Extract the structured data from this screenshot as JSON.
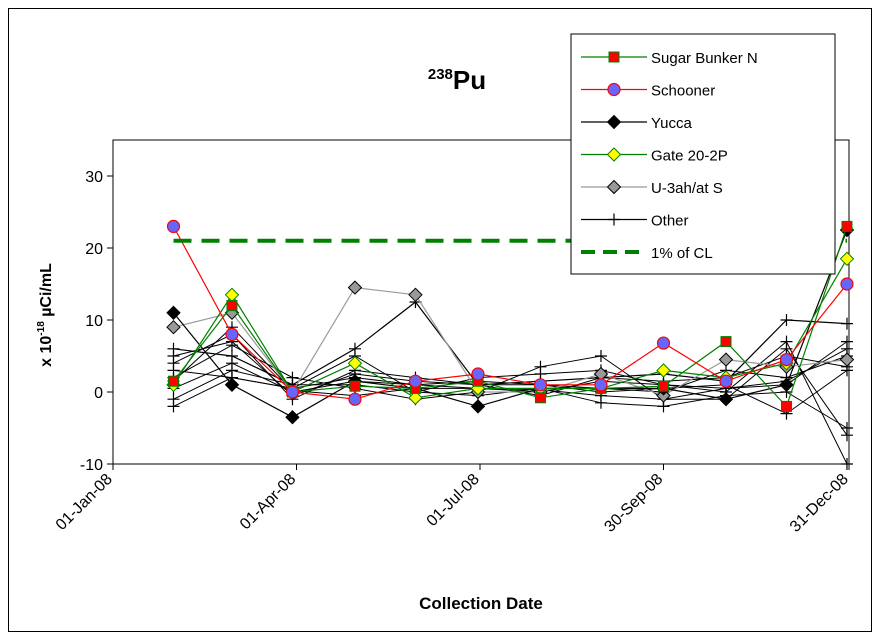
{
  "chart_data": {
    "type": "line",
    "title": {
      "sup": "238",
      "main": "Pu"
    },
    "xlabel": "Collection Date",
    "ylabel": {
      "prefix": "x 10",
      "exp": "-18",
      "unit": " µCi/mL"
    },
    "ylim": [
      -10,
      35
    ],
    "yticks": [
      -10,
      0,
      10,
      20,
      30
    ],
    "xticks": [
      {
        "day": 0,
        "label": "01-Jan-08"
      },
      {
        "day": 91,
        "label": "01-Apr-08"
      },
      {
        "day": 182,
        "label": "01-Jul-08"
      },
      {
        "day": 273,
        "label": "30-Sep-08"
      },
      {
        "day": 365,
        "label": "31-Dec-08"
      }
    ],
    "xlim": [
      0,
      365
    ],
    "grid": false,
    "legend_position": "top-right",
    "series": [
      {
        "name": "Sugar Bunker N",
        "color": "#008000",
        "marker": "square",
        "markerFill": "#ff0000",
        "markerStroke": "#008000",
        "points": [
          [
            30,
            1.5
          ],
          [
            59,
            12
          ],
          [
            89,
            0
          ],
          [
            120,
            0.8
          ],
          [
            150,
            0.5
          ],
          [
            181,
            1.5
          ],
          [
            212,
            -0.8
          ],
          [
            242,
            0.5
          ],
          [
            273,
            0.8
          ],
          [
            304,
            7
          ],
          [
            334,
            -2
          ],
          [
            364,
            23
          ]
        ]
      },
      {
        "name": "Schooner",
        "color": "#ff0000",
        "marker": "circle",
        "markerFill": "#6666ff",
        "markerStroke": "#ff0000",
        "points": [
          [
            30,
            23
          ],
          [
            59,
            8
          ],
          [
            89,
            0
          ],
          [
            120,
            -1
          ],
          [
            150,
            1.5
          ],
          [
            181,
            2.5
          ],
          [
            212,
            1
          ],
          [
            242,
            1
          ],
          [
            273,
            6.8
          ],
          [
            304,
            1.5
          ],
          [
            334,
            4.5
          ],
          [
            364,
            15
          ]
        ]
      },
      {
        "name": "Yucca",
        "color": "#000000",
        "marker": "diamond",
        "markerFill": "#000000",
        "markerStroke": "#000000",
        "points": [
          [
            30,
            11
          ],
          [
            59,
            1
          ],
          [
            89,
            -3.5
          ],
          [
            120,
            1.5
          ],
          [
            150,
            0.5
          ],
          [
            181,
            -2
          ],
          [
            212,
            0.5
          ],
          [
            242,
            0.5
          ],
          [
            273,
            0.5
          ],
          [
            304,
            -1
          ],
          [
            334,
            1
          ],
          [
            364,
            22.5
          ]
        ]
      },
      {
        "name": "Gate 20-2P",
        "color": "#008000",
        "marker": "diamond",
        "markerFill": "#ffff00",
        "markerStroke": "#008000",
        "points": [
          [
            30,
            1
          ],
          [
            59,
            13.5
          ],
          [
            89,
            0
          ],
          [
            120,
            4
          ],
          [
            150,
            -0.8
          ],
          [
            181,
            0.5
          ],
          [
            212,
            0.5
          ],
          [
            242,
            0.5
          ],
          [
            273,
            3
          ],
          [
            304,
            2
          ],
          [
            334,
            4
          ],
          [
            364,
            18.5
          ]
        ]
      },
      {
        "name": "U-3ah/at S",
        "color": "#999999",
        "marker": "diamond",
        "markerFill": "#999999",
        "markerStroke": "#000000",
        "points": [
          [
            30,
            9
          ],
          [
            59,
            11
          ],
          [
            89,
            0
          ],
          [
            120,
            14.5
          ],
          [
            150,
            13.5
          ],
          [
            181,
            0
          ],
          [
            212,
            0
          ],
          [
            242,
            2.5
          ],
          [
            273,
            -0.5
          ],
          [
            304,
            4.5
          ],
          [
            334,
            3.5
          ],
          [
            364,
            4.5
          ]
        ]
      },
      {
        "name": "Other",
        "color": "#000000",
        "marker": "plus",
        "markerFill": "none",
        "markerStroke": "#000000",
        "points": [
          [
            30,
            6
          ],
          [
            59,
            5
          ],
          [
            89,
            1
          ],
          [
            120,
            6
          ],
          [
            150,
            12.5
          ],
          [
            181,
            1
          ],
          [
            212,
            1.5
          ],
          [
            242,
            2
          ],
          [
            273,
            2.5
          ],
          [
            304,
            1.5
          ],
          [
            334,
            10
          ],
          [
            364,
            9.5
          ]
        ]
      },
      {
        "name": "1% of CL",
        "color": "#008000",
        "dashed": true,
        "marker": "none",
        "points": [
          [
            30,
            21
          ],
          [
            364,
            21
          ]
        ]
      }
    ],
    "unlabeled_series": [
      [
        [
          30,
          3
        ],
        [
          59,
          2
        ],
        [
          89,
          0.5
        ],
        [
          120,
          2
        ],
        [
          150,
          1
        ],
        [
          181,
          0.5
        ],
        [
          212,
          0
        ],
        [
          242,
          1.5
        ],
        [
          273,
          1
        ],
        [
          304,
          0.5
        ],
        [
          334,
          1
        ],
        [
          364,
          7
        ]
      ],
      [
        [
          30,
          4
        ],
        [
          59,
          8
        ],
        [
          89,
          -1
        ],
        [
          120,
          3
        ],
        [
          150,
          2
        ],
        [
          181,
          1
        ],
        [
          212,
          1
        ],
        [
          242,
          0.5
        ],
        [
          273,
          0
        ],
        [
          304,
          3
        ],
        [
          334,
          2
        ],
        [
          364,
          5
        ]
      ],
      [
        [
          30,
          -1
        ],
        [
          59,
          3
        ],
        [
          89,
          1
        ],
        [
          120,
          1
        ],
        [
          150,
          0
        ],
        [
          181,
          2
        ],
        [
          212,
          2.5
        ],
        [
          242,
          3
        ],
        [
          273,
          1
        ],
        [
          304,
          0
        ],
        [
          334,
          7
        ],
        [
          364,
          -10
        ]
      ],
      [
        [
          30,
          2
        ],
        [
          59,
          6.5
        ],
        [
          89,
          2
        ],
        [
          120,
          0.5
        ],
        [
          150,
          -1
        ],
        [
          181,
          0
        ],
        [
          212,
          3.5
        ],
        [
          242,
          5
        ],
        [
          273,
          -1
        ],
        [
          304,
          -1
        ],
        [
          334,
          6
        ],
        [
          364,
          -6
        ]
      ],
      [
        [
          30,
          0.5
        ],
        [
          59,
          4
        ],
        [
          89,
          0
        ],
        [
          120,
          1.5
        ],
        [
          150,
          1
        ],
        [
          181,
          1.5
        ],
        [
          212,
          1
        ],
        [
          242,
          0
        ],
        [
          273,
          0.5
        ],
        [
          304,
          1
        ],
        [
          334,
          -3
        ],
        [
          364,
          3
        ]
      ],
      [
        [
          30,
          -2
        ],
        [
          59,
          2
        ],
        [
          89,
          0.5
        ],
        [
          120,
          5
        ],
        [
          150,
          0
        ],
        [
          181,
          -0.5
        ],
        [
          212,
          0.5
        ],
        [
          242,
          -1.5
        ],
        [
          273,
          -2
        ],
        [
          304,
          -0.5
        ],
        [
          334,
          0
        ],
        [
          364,
          -5
        ]
      ],
      [
        [
          30,
          5
        ],
        [
          59,
          7
        ],
        [
          89,
          -0.5
        ],
        [
          120,
          2.5
        ],
        [
          150,
          1.5
        ],
        [
          181,
          1
        ],
        [
          212,
          -0.5
        ],
        [
          242,
          2
        ],
        [
          273,
          1.5
        ],
        [
          304,
          2
        ],
        [
          334,
          5
        ],
        [
          364,
          3.5
        ]
      ],
      [
        [
          30,
          1.5
        ],
        [
          59,
          9
        ],
        [
          89,
          0.2
        ],
        [
          120,
          -0.5
        ],
        [
          150,
          0.5
        ],
        [
          181,
          0.5
        ],
        [
          212,
          0.3
        ],
        [
          242,
          -0.5
        ],
        [
          273,
          -1
        ],
        [
          304,
          0.5
        ],
        [
          334,
          1.5
        ],
        [
          364,
          6
        ]
      ]
    ]
  }
}
